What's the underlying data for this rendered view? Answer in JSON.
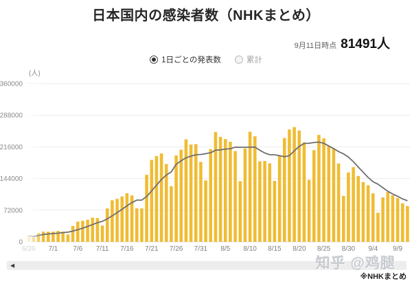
{
  "header": {
    "title": "日本国内の感染者数（NHKまとめ）",
    "asof_label": "9月11日時点",
    "asof_value": "81491人"
  },
  "controls": {
    "daily_label": "1日ごとの発表数",
    "daily_selected": true,
    "cumulative_label": "累計",
    "cumulative_selected": false
  },
  "chart_data": {
    "type": "bar",
    "title": "日本国内の感染者数（NHKまとめ）",
    "ylabel": "(人)",
    "xlabel": "",
    "ylim": [
      0,
      360000
    ],
    "y_ticks": [
      0,
      72000,
      144000,
      216000,
      288000,
      360000
    ],
    "grid": true,
    "legend_position": "none",
    "x_label_interval": 5,
    "faded_left_bars": 3,
    "categories": [
      "6/26",
      "6/27",
      "6/28",
      "6/29",
      "6/30",
      "7/1",
      "7/2",
      "7/3",
      "7/4",
      "7/5",
      "7/6",
      "7/7",
      "7/8",
      "7/9",
      "7/10",
      "7/11",
      "7/12",
      "7/13",
      "7/14",
      "7/15",
      "7/16",
      "7/17",
      "7/18",
      "7/19",
      "7/20",
      "7/21",
      "7/22",
      "7/23",
      "7/24",
      "7/25",
      "7/26",
      "7/27",
      "7/28",
      "7/29",
      "7/30",
      "7/31",
      "8/1",
      "8/2",
      "8/3",
      "8/4",
      "8/5",
      "8/6",
      "8/7",
      "8/8",
      "8/9",
      "8/10",
      "8/11",
      "8/12",
      "8/13",
      "8/14",
      "8/15",
      "8/16",
      "8/17",
      "8/18",
      "8/19",
      "8/20",
      "8/21",
      "8/22",
      "8/23",
      "8/24",
      "8/25",
      "8/26",
      "8/27",
      "8/28",
      "8/29",
      "8/30",
      "8/31",
      "9/1",
      "9/2",
      "9/3",
      "9/4",
      "9/5",
      "9/6",
      "9/7",
      "9/8",
      "9/9",
      "9/10",
      "9/11"
    ],
    "series": [
      {
        "name": "1日ごとの発表数",
        "type": "bar",
        "color": "#F0BC33",
        "values": [
          14216,
          9578,
          19386,
          23346,
          23135,
          23122,
          24895,
          23290,
          16782,
          36159,
          45821,
          47957,
          50091,
          54993,
          54071,
          37143,
          76011,
          94493,
          97788,
          103305,
          110657,
          105584,
          76200,
          76012,
          152536,
          186246,
          195161,
          200975,
          176856,
          126575,
          196495,
          209694,
          233094,
          221442,
          222307,
          181778,
          139687,
          211058,
          249830,
          238735,
          233769,
          227563,
          206495,
          137859,
          212552,
          250403,
          240205,
          183003,
          183881,
          178356,
          138613,
          196300,
          236123,
          255534,
          261029,
          253265,
          226171,
          141059,
          208551,
          243284,
          235318,
          217996,
          212247,
          178194,
          104597,
          157817,
          169800,
          149906,
          135962,
          128728,
          110267,
          66093,
          101055,
          113580,
          105789,
          99491,
          87572,
          81491
        ]
      },
      {
        "name": "7日間移動平均",
        "type": "line",
        "color": "#6E6E6E",
        "derived_from": "7-day trailing moving average of bar values"
      }
    ]
  },
  "scrollbar": {
    "left_arrow": "◀"
  },
  "watermark": "知乎 @鸡腿",
  "footnote": "※NHKまとめ"
}
